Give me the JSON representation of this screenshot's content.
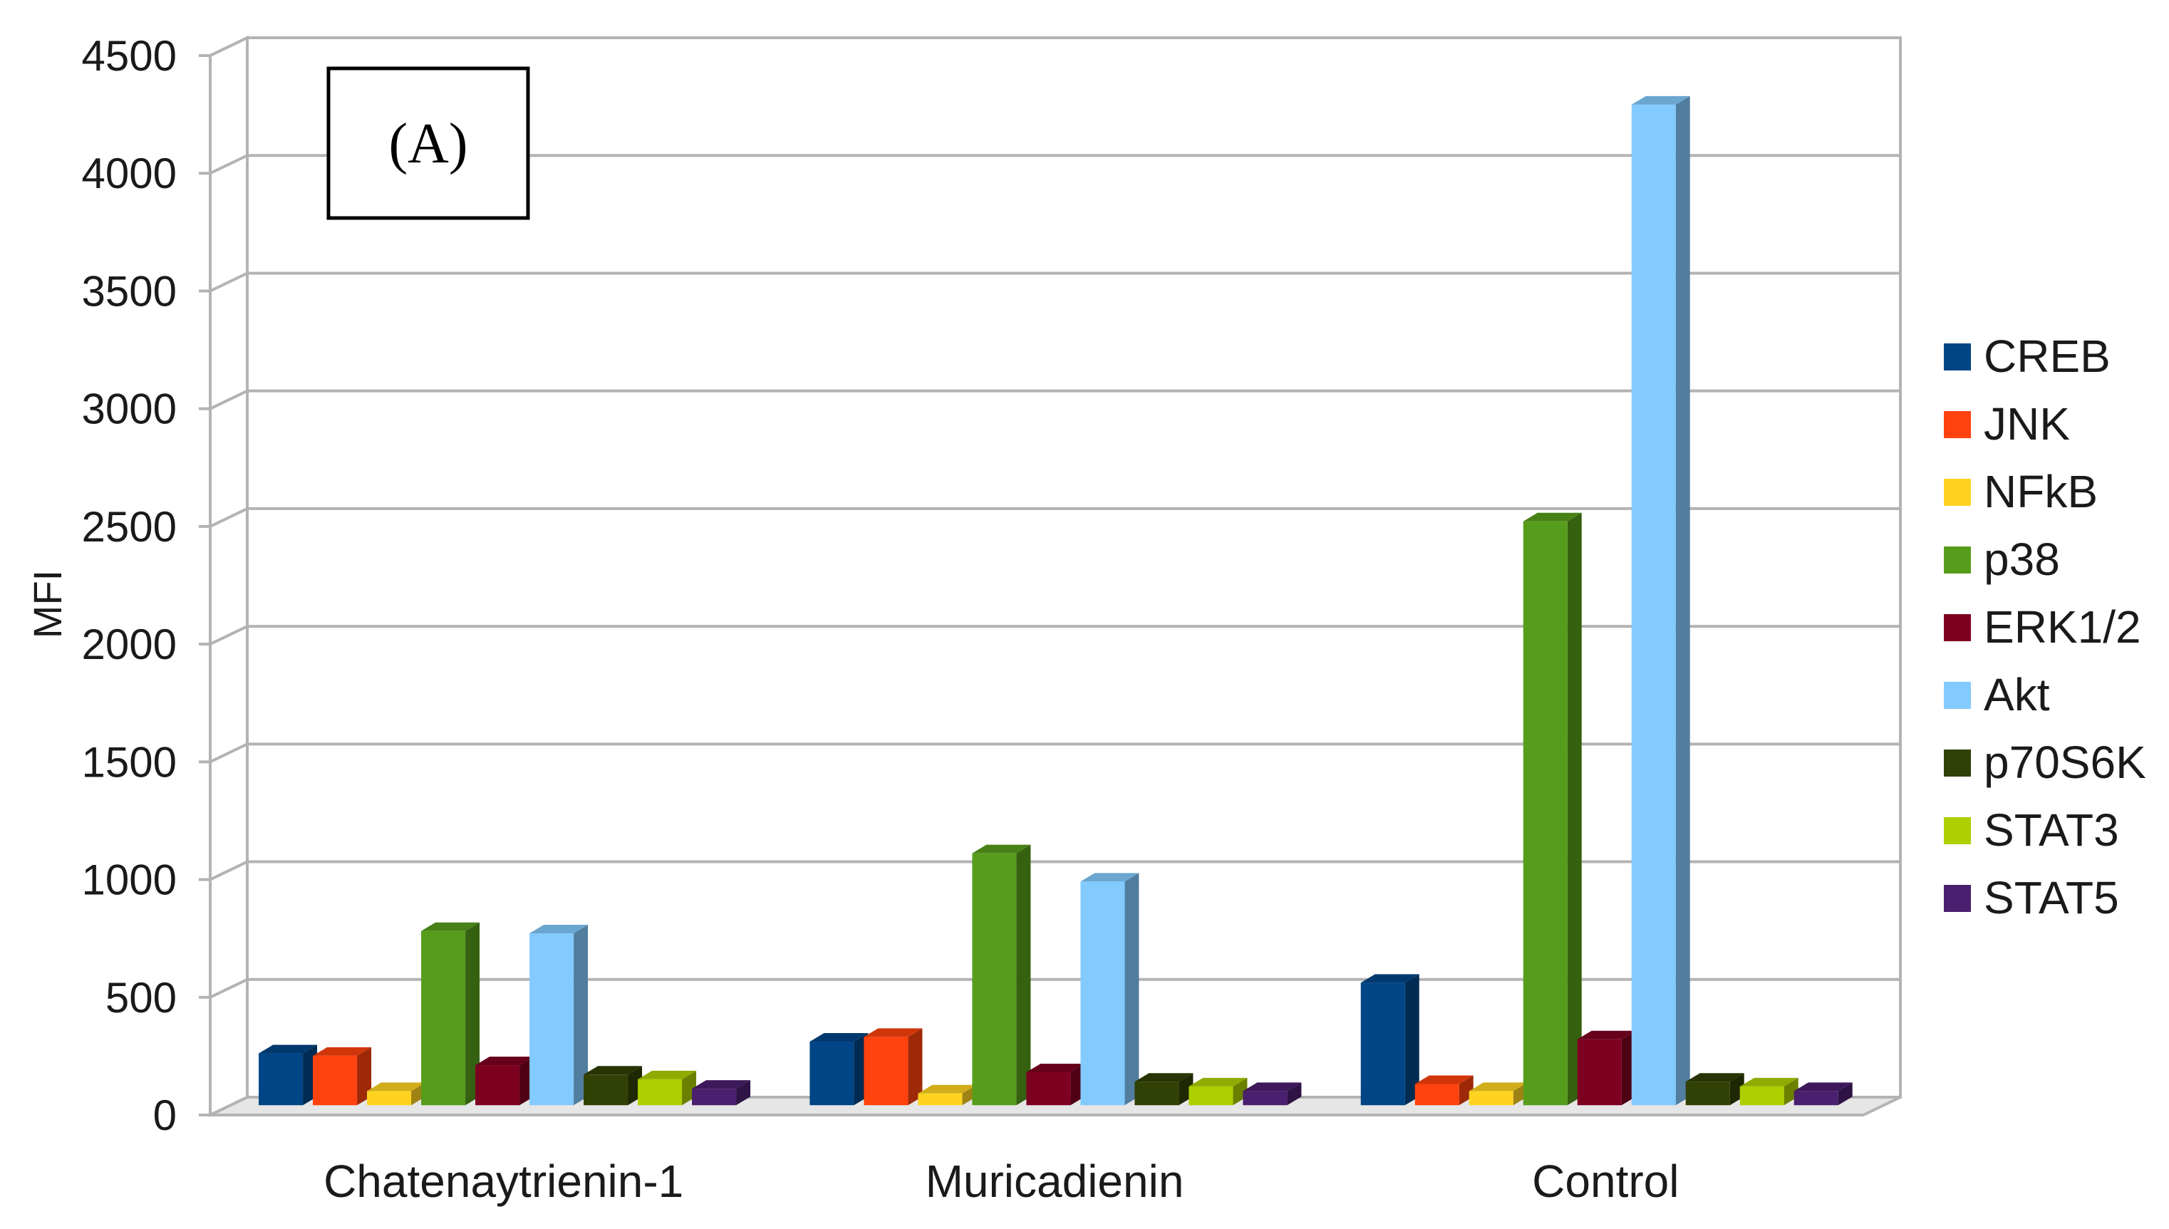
{
  "chart_data": {
    "type": "bar",
    "style": "3d-clustered-column",
    "panel_label": "(A)",
    "title": "",
    "xlabel": "",
    "ylabel": "MFI",
    "ylim": [
      0,
      4500
    ],
    "yticks": [
      0,
      500,
      1000,
      1500,
      2000,
      2500,
      3000,
      3500,
      4000,
      4500
    ],
    "grid": true,
    "legend_position": "right",
    "categories": [
      "Chatenaytrienin-1",
      "Muricadienin",
      "Control"
    ],
    "series": [
      {
        "name": "CREB",
        "color": "#004586",
        "values": [
          220,
          270,
          520
        ]
      },
      {
        "name": "JNK",
        "color": "#ff420e",
        "values": [
          210,
          290,
          90
        ]
      },
      {
        "name": "NFkB",
        "color": "#ffd320",
        "values": [
          60,
          50,
          60
        ]
      },
      {
        "name": "p38",
        "color": "#579d1c",
        "values": [
          740,
          1070,
          2480
        ]
      },
      {
        "name": "ERK1/2",
        "color": "#7e0021",
        "values": [
          170,
          140,
          280
        ]
      },
      {
        "name": "Akt",
        "color": "#83caff",
        "values": [
          730,
          950,
          4250
        ]
      },
      {
        "name": "p70S6K",
        "color": "#314004",
        "values": [
          130,
          100,
          100
        ]
      },
      {
        "name": "STAT3",
        "color": "#aecf00",
        "values": [
          110,
          80,
          80
        ]
      },
      {
        "name": "STAT5",
        "color": "#4b1f6f",
        "values": [
          70,
          60,
          60
        ]
      }
    ]
  }
}
